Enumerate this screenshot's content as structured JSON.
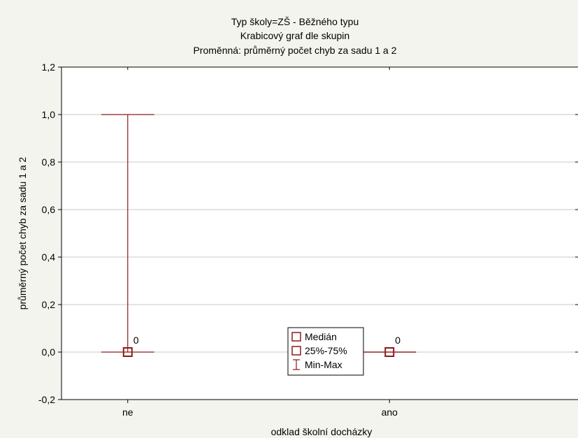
{
  "chart_data": {
    "type": "box",
    "title_lines": [
      "Typ školy=ZŠ - Běžného typu",
      "Krabicový graf dle skupin",
      "Proměnná: průměrný počet chyb za sadu 1 a 2"
    ],
    "xlabel": "odklad školní docházky",
    "ylabel": "průměrný počet chyb za sadu 1 a 2",
    "categories": [
      "ne",
      "ano"
    ],
    "ylim": [
      -0.2,
      1.2
    ],
    "yticks": [
      -0.2,
      0.0,
      0.2,
      0.4,
      0.6,
      0.8,
      1.0,
      1.2
    ],
    "ytick_labels": [
      "-0,2",
      "0,0",
      "0,2",
      "0,4",
      "0,6",
      "0,8",
      "1,0",
      "1,2"
    ],
    "grid": true,
    "series": [
      {
        "category": "ne",
        "median": 0,
        "q1": 0,
        "q3": 0,
        "min": 0,
        "max": 1,
        "median_label": "0"
      },
      {
        "category": "ano",
        "median": 0,
        "q1": 0,
        "q3": 0,
        "min": 0,
        "max": 0,
        "median_label": "0"
      }
    ],
    "legend": {
      "position": "bottom-center",
      "items": [
        {
          "marker": "square",
          "label": "Medián"
        },
        {
          "marker": "box",
          "label": "25%-75%"
        },
        {
          "marker": "whisker",
          "label": "Min-Max"
        }
      ]
    },
    "colors": {
      "series": "#8b1a1a",
      "grid": "#c8c8c8",
      "plot_bg": "#ffffff",
      "page_bg": "#f4f4ee"
    }
  }
}
